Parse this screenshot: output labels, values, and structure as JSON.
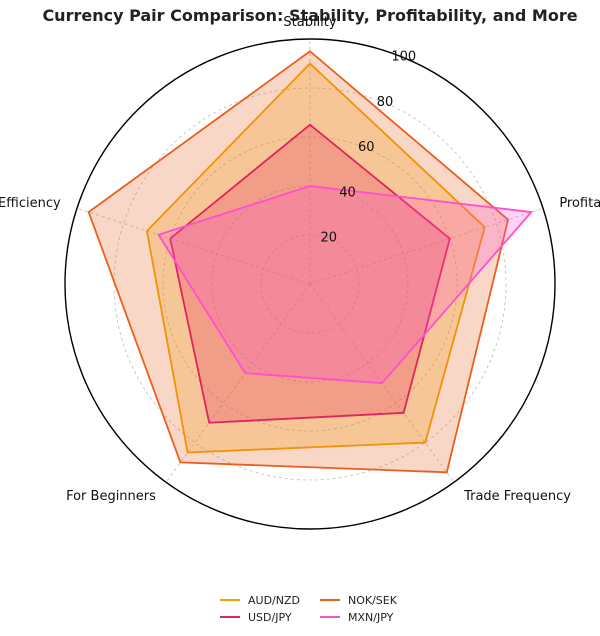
{
  "chart_data": {
    "type": "radar",
    "title": "Currency Pair Comparison: Stability, Profitability, and More",
    "axes": [
      "Stability",
      "Profitability",
      "Trade Frequency",
      "For Beginners",
      "Capital Efficiency"
    ],
    "rlim": [
      0,
      100
    ],
    "rticks": [
      20,
      40,
      60,
      80,
      100
    ],
    "grid": true,
    "legend_position": "bottom-center",
    "series": [
      {
        "name": "AUD/NZD",
        "color": "#f5a300",
        "values": [
          90,
          75,
          80,
          85,
          70
        ]
      },
      {
        "name": "NOK/SEK",
        "color": "#e8601c",
        "values": [
          95,
          85,
          95,
          90,
          95
        ]
      },
      {
        "name": "USD/JPY",
        "color": "#e0245e",
        "values": [
          65,
          60,
          65,
          70,
          60
        ]
      },
      {
        "name": "MXN/JPY",
        "color": "#ff4fcf",
        "values": [
          40,
          95,
          50,
          45,
          65
        ]
      }
    ]
  }
}
